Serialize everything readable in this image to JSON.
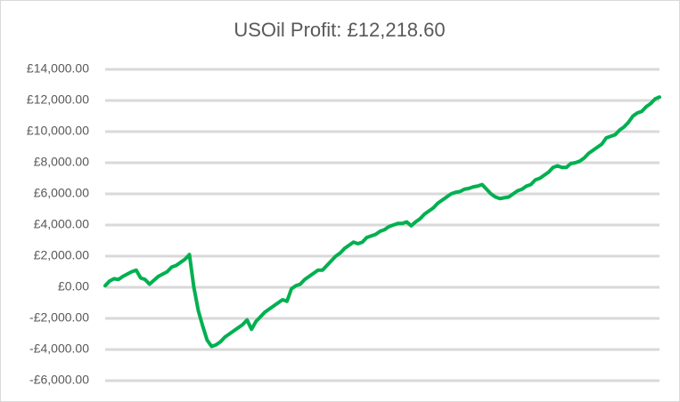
{
  "chart_data": {
    "type": "line",
    "title": "USOil Profit: £12,218.60",
    "series": [
      {
        "name": "USOil",
        "color": "#00b050",
        "values": [
          100,
          400,
          550,
          500,
          700,
          850,
          1000,
          1100,
          600,
          500,
          200,
          450,
          700,
          850,
          1000,
          1300,
          1400,
          1600,
          1800,
          2100,
          0,
          -1500,
          -2500,
          -3400,
          -3800,
          -3700,
          -3500,
          -3200,
          -3000,
          -2800,
          -2600,
          -2400,
          -2100,
          -2700,
          -2200,
          -1900,
          -1600,
          -1400,
          -1200,
          -1000,
          -800,
          -900,
          -100,
          100,
          200,
          500,
          700,
          900,
          1100,
          1100,
          1400,
          1700,
          2000,
          2200,
          2500,
          2700,
          2900,
          2800,
          2900,
          3200,
          3300,
          3400,
          3600,
          3700,
          3900,
          4000,
          4100,
          4100,
          4200,
          3950,
          4200,
          4400,
          4700,
          4900,
          5100,
          5400,
          5600,
          5800,
          6000,
          6100,
          6150,
          6300,
          6350,
          6450,
          6500,
          6600,
          6300,
          6000,
          5800,
          5700,
          5750,
          5800,
          6000,
          6200,
          6300,
          6500,
          6600,
          6900,
          7000,
          7200,
          7400,
          7700,
          7800,
          7700,
          7700,
          7950,
          8000,
          8100,
          8300,
          8600,
          8800,
          9000,
          9200,
          9600,
          9700,
          9800,
          10100,
          10300,
          10600,
          11000,
          11200,
          11300,
          11600,
          11800,
          12100,
          12220
        ]
      }
    ],
    "ylim": [
      -6000,
      14000
    ],
    "yticks": [
      {
        "value": -6000,
        "label": "-£6,000.00"
      },
      {
        "value": -4000,
        "label": "-£4,000.00"
      },
      {
        "value": -2000,
        "label": "-£2,000.00"
      },
      {
        "value": 0,
        "label": "£0.00"
      },
      {
        "value": 2000,
        "label": "£2,000.00"
      },
      {
        "value": 4000,
        "label": "£4,000.00"
      },
      {
        "value": 6000,
        "label": "£6,000.00"
      },
      {
        "value": 8000,
        "label": "£8,000.00"
      },
      {
        "value": 10000,
        "label": "£10,000.00"
      },
      {
        "value": 12000,
        "label": "£12,000.00"
      },
      {
        "value": 14000,
        "label": "£14,000.00"
      }
    ],
    "grid": true
  }
}
